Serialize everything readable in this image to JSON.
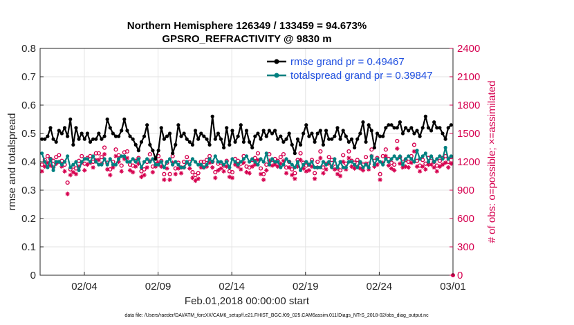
{
  "chart_data": {
    "type": "line",
    "title_line1": "Northern Hemisphere 126349 / 133459 = 94.673%",
    "title_line2": "GPSRO_REFRACTIVITY @ 9830 m",
    "xlabel": "Feb.01,2018 00:00:00 start",
    "ylabel_left": "rmse and totalspread",
    "ylabel_right": "# of obs: o=possible; ×=assimilated",
    "footnote": "data file: /Users/raeder/DAI/ATM_forcXX/CAM6_setup/f.e21.FHIST_BGC.f09_025.CAM6assim.011/Diags_NTrS_2018-02/obs_diag_output.nc",
    "x_range_days": [
      0,
      28
    ],
    "x_ticks": [
      {
        "day": 3,
        "label": "02/04"
      },
      {
        "day": 8,
        "label": "02/09"
      },
      {
        "day": 13,
        "label": "02/14"
      },
      {
        "day": 18,
        "label": "02/19"
      },
      {
        "day": 23,
        "label": "02/24"
      },
      {
        "day": 28,
        "label": "03/01"
      }
    ],
    "ylim_left": [
      0,
      0.8
    ],
    "y_ticks_left": [
      "0",
      "0.1",
      "0.2",
      "0.3",
      "0.4",
      "0.5",
      "0.6",
      "0.7",
      "0.8"
    ],
    "ylim_right": [
      0,
      2400
    ],
    "y_ticks_right": [
      "0",
      "300",
      "600",
      "900",
      "1200",
      "1500",
      "1800",
      "2100",
      "2400"
    ],
    "legend": [
      {
        "label": "rmse grand pr = 0.49467",
        "color": "#000000"
      },
      {
        "label": "totalspread grand pr = 0.39847",
        "color": "#008080"
      }
    ],
    "colors": {
      "rmse": "#000000",
      "spread": "#008080",
      "obs": "#d6004f",
      "legend_text": "#1f4fe0",
      "grid": "#e3e3e3"
    },
    "series_rmse": [
      0.48,
      0.48,
      0.49,
      0.52,
      0.48,
      0.47,
      0.51,
      0.5,
      0.52,
      0.49,
      0.55,
      0.46,
      0.52,
      0.48,
      0.5,
      0.48,
      0.5,
      0.47,
      0.48,
      0.48,
      0.5,
      0.48,
      0.49,
      0.55,
      0.52,
      0.5,
      0.49,
      0.49,
      0.51,
      0.55,
      0.51,
      0.49,
      0.48,
      0.46,
      0.44,
      0.47,
      0.49,
      0.53,
      0.46,
      0.44,
      0.41,
      0.44,
      0.52,
      0.48,
      0.49,
      0.5,
      0.43,
      0.46,
      0.53,
      0.49,
      0.5,
      0.48,
      0.47,
      0.46,
      0.51,
      0.48,
      0.5,
      0.49,
      0.48,
      0.46,
      0.56,
      0.48,
      0.5,
      0.48,
      0.45,
      0.52,
      0.46,
      0.51,
      0.47,
      0.49,
      0.53,
      0.47,
      0.51,
      0.47,
      0.45,
      0.49,
      0.5,
      0.48,
      0.51,
      0.49,
      0.51,
      0.5,
      0.51,
      0.48,
      0.49,
      0.47,
      0.48,
      0.5,
      0.46,
      0.43,
      0.48,
      0.46,
      0.5,
      0.53,
      0.49,
      0.5,
      0.47,
      0.5,
      0.51,
      0.46,
      0.51,
      0.48,
      0.48,
      0.49,
      0.52,
      0.48,
      0.51,
      0.49,
      0.47,
      0.48,
      0.45,
      0.48,
      0.5,
      0.54,
      0.47,
      0.53,
      0.51,
      0.45,
      0.5,
      0.49,
      0.49,
      0.52,
      0.53,
      0.53,
      0.52,
      0.52,
      0.54,
      0.5,
      0.52,
      0.51,
      0.52,
      0.5,
      0.51,
      0.49,
      0.52,
      0.56,
      0.52,
      0.51,
      0.54,
      0.52,
      0.52,
      0.5,
      0.48,
      0.52,
      0.53
    ],
    "series_spread": [
      0.43,
      0.4,
      0.38,
      0.41,
      0.37,
      0.4,
      0.4,
      0.39,
      0.4,
      0.42,
      0.38,
      0.39,
      0.4,
      0.37,
      0.4,
      0.41,
      0.41,
      0.4,
      0.42,
      0.4,
      0.39,
      0.39,
      0.41,
      0.39,
      0.41,
      0.39,
      0.39,
      0.41,
      0.42,
      0.42,
      0.4,
      0.4,
      0.41,
      0.4,
      0.41,
      0.38,
      0.4,
      0.41,
      0.4,
      0.41,
      0.39,
      0.39,
      0.4,
      0.38,
      0.4,
      0.41,
      0.39,
      0.4,
      0.39,
      0.38,
      0.38,
      0.4,
      0.39,
      0.41,
      0.4,
      0.39,
      0.39,
      0.38,
      0.39,
      0.41,
      0.4,
      0.42,
      0.4,
      0.4,
      0.39,
      0.4,
      0.38,
      0.41,
      0.4,
      0.39,
      0.4,
      0.41,
      0.42,
      0.4,
      0.41,
      0.4,
      0.39,
      0.41,
      0.4,
      0.43,
      0.39,
      0.41,
      0.4,
      0.4,
      0.38,
      0.39,
      0.41,
      0.4,
      0.39,
      0.38,
      0.4,
      0.37,
      0.39,
      0.4,
      0.39,
      0.4,
      0.38,
      0.38,
      0.38,
      0.4,
      0.39,
      0.4,
      0.38,
      0.41,
      0.38,
      0.4,
      0.38,
      0.38,
      0.4,
      0.4,
      0.39,
      0.38,
      0.4,
      0.38,
      0.39,
      0.38,
      0.42,
      0.39,
      0.41,
      0.4,
      0.39,
      0.41,
      0.4,
      0.41,
      0.42,
      0.41,
      0.42,
      0.39,
      0.41,
      0.42,
      0.41,
      0.4,
      0.44,
      0.41,
      0.42,
      0.43,
      0.4,
      0.42,
      0.4,
      0.41,
      0.42,
      0.41,
      0.45,
      0.41,
      0.42
    ],
    "series_obs_possible": [
      1170,
      1220,
      1260,
      1230,
      1210,
      1250,
      1270,
      1210,
      1170,
      980,
      1120,
      1150,
      1130,
      1210,
      1260,
      1180,
      1240,
      1260,
      1200,
      1290,
      1290,
      1250,
      1350,
      1190,
      1120,
      1200,
      1330,
      1270,
      1160,
      1300,
      1310,
      1170,
      1160,
      1210,
      1240,
      1100,
      1120,
      1200,
      1280,
      1150,
      1210,
      1260,
      1210,
      1070,
      1190,
      1070,
      1260,
      1130,
      1190,
      1140,
      1200,
      1250,
      1200,
      1090,
      1060,
      1080,
      1200,
      1200,
      1220,
      1260,
      1200,
      1090,
      1180,
      1190,
      1160,
      1210,
      1100,
      1090,
      1230,
      1210,
      1180,
      1260,
      1150,
      1140,
      1220,
      1240,
      1290,
      1130,
      1070,
      1170,
      1280,
      1220,
      1230,
      1210,
      1250,
      1280,
      1140,
      1200,
      1120,
      1080,
      1220,
      1290,
      1190,
      1160,
      1170,
      1220,
      1080,
      1200,
      1310,
      1140,
      1180,
      1250,
      1220,
      1180,
      1130,
      1110,
      1270,
      1180,
      1310,
      1210,
      1190,
      1220,
      1190,
      1170,
      1250,
      1180,
      1330,
      1210,
      1240,
      1070,
      1260,
      1330,
      1230,
      1190,
      1170,
      1420,
      1250,
      1200,
      1220,
      1200,
      1260,
      1380,
      1210,
      1160,
      1220,
      1180,
      1240,
      1240,
      1200,
      1160,
      1210,
      1240,
      1260,
      1200,
      1250
    ],
    "series_obs_assimilated": [
      1100,
      1150,
      1190,
      1160,
      1140,
      1180,
      1200,
      1150,
      1100,
      860,
      1060,
      1090,
      1070,
      1150,
      1190,
      1110,
      1170,
      1190,
      1140,
      1220,
      1220,
      1180,
      1280,
      1120,
      1060,
      1140,
      1260,
      1200,
      1100,
      1230,
      1240,
      1110,
      1090,
      1150,
      1180,
      1040,
      1060,
      1140,
      1210,
      1090,
      1150,
      1190,
      1150,
      1010,
      1130,
      1010,
      1190,
      1070,
      1130,
      1080,
      1140,
      1190,
      1130,
      1030,
      1000,
      1020,
      1140,
      1140,
      1150,
      1190,
      1140,
      1030,
      1110,
      1130,
      1100,
      1150,
      1040,
      1030,
      1170,
      1150,
      1120,
      1190,
      1090,
      1080,
      1150,
      1170,
      1220,
      1070,
      1010,
      1110,
      1210,
      1160,
      1170,
      1150,
      1180,
      1210,
      1080,
      1140,
      1060,
      1020,
      1150,
      1220,
      1130,
      1100,
      1110,
      1150,
      1020,
      1140,
      1240,
      1080,
      1120,
      1180,
      1150,
      1120,
      1070,
      1050,
      1200,
      1120,
      1240,
      1150,
      1130,
      1150,
      1130,
      1110,
      1180,
      1120,
      1260,
      1150,
      1170,
      1010,
      1190,
      1260,
      1160,
      1130,
      1110,
      1340,
      1180,
      1140,
      1150,
      1140,
      1190,
      1310,
      1150,
      1100,
      1150,
      1120,
      1170,
      1170,
      1140,
      1100,
      1150,
      1170,
      1190,
      1140,
      1180
    ]
  }
}
